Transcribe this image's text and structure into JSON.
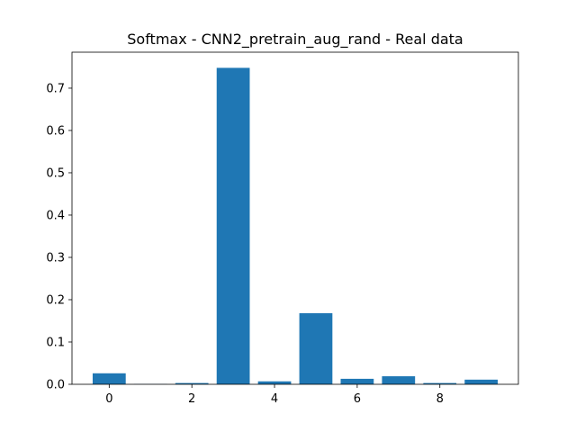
{
  "chart_data": {
    "type": "bar",
    "title": "Softmax - CNN2_pretrain_aug_rand - Real data",
    "xlabel": "",
    "ylabel": "",
    "x": [
      0,
      1,
      2,
      3,
      4,
      5,
      6,
      7,
      8,
      9
    ],
    "values": [
      0.026,
      0.0005,
      0.003,
      0.748,
      0.007,
      0.168,
      0.013,
      0.019,
      0.003,
      0.011
    ],
    "xlim": [
      -0.9,
      9.9
    ],
    "ylim": [
      0,
      0.785
    ],
    "xticks": [
      0,
      2,
      4,
      6,
      8
    ],
    "xtick_labels": [
      "0",
      "2",
      "4",
      "6",
      "8"
    ],
    "yticks": [
      0.0,
      0.1,
      0.2,
      0.3,
      0.4,
      0.5,
      0.6,
      0.7
    ],
    "ytick_labels": [
      "0.0",
      "0.1",
      "0.2",
      "0.3",
      "0.4",
      "0.5",
      "0.6",
      "0.7"
    ],
    "bar_width": 0.8,
    "bar_color": "#1f77b4",
    "grid": false,
    "legend": "none"
  }
}
